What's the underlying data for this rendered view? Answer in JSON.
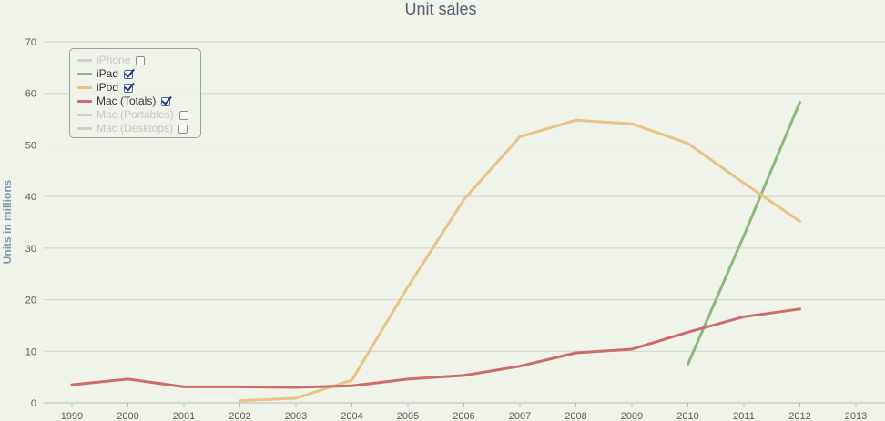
{
  "chart_data": {
    "type": "line",
    "title": "Unit sales",
    "ylabel": "Units in millions",
    "xlabel": "",
    "ylim": [
      0,
      70
    ],
    "yticks": [
      0,
      10,
      20,
      30,
      40,
      50,
      60,
      70
    ],
    "xlim": [
      1999,
      2013
    ],
    "xticks": [
      1999,
      2000,
      2001,
      2002,
      2003,
      2004,
      2005,
      2006,
      2007,
      2008,
      2009,
      2010,
      2011,
      2012,
      2013
    ],
    "grid": "horizontal",
    "legend_position": "top-left",
    "series": [
      {
        "name": "iPhone",
        "color": "#c8cbc5",
        "visible": false,
        "x": [],
        "y": []
      },
      {
        "name": "iPad",
        "color": "#8cb87a",
        "visible": true,
        "x": [
          2010,
          2011,
          2012
        ],
        "y": [
          7.5,
          32.4,
          58.3
        ]
      },
      {
        "name": "iPod",
        "color": "#e8c384",
        "visible": true,
        "x": [
          2002,
          2003,
          2004,
          2005,
          2006,
          2007,
          2008,
          2009,
          2010,
          2011,
          2012
        ],
        "y": [
          0.4,
          0.9,
          4.4,
          22.5,
          39.4,
          51.6,
          54.8,
          54.1,
          50.3,
          42.6,
          35.2
        ]
      },
      {
        "name": "Mac (Totals)",
        "color": "#cc6b68",
        "visible": true,
        "x": [
          1999,
          2000,
          2001,
          2002,
          2003,
          2004,
          2005,
          2006,
          2007,
          2008,
          2009,
          2010,
          2011,
          2012
        ],
        "y": [
          3.5,
          4.6,
          3.1,
          3.1,
          3.0,
          3.3,
          4.6,
          5.3,
          7.1,
          9.7,
          10.4,
          13.7,
          16.7,
          18.2
        ]
      },
      {
        "name": "Mac (Portables)",
        "color": "#c8cbc5",
        "visible": false,
        "x": [],
        "y": []
      },
      {
        "name": "Mac (Desktops)",
        "color": "#c8cbc5",
        "visible": false,
        "x": [],
        "y": []
      }
    ]
  }
}
